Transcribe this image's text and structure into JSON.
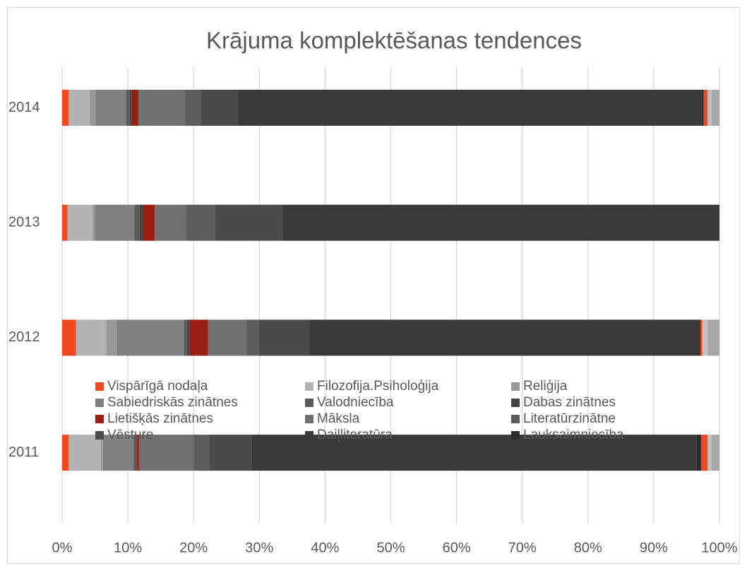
{
  "chart_data": {
    "type": "stacked_barh",
    "title": "Krājuma komplektēšanas tendences",
    "categories": [
      "2011",
      "2012",
      "2013",
      "2014"
    ],
    "series": [
      {
        "name": "Vispārīgā nodaļa",
        "color": "#f04a23",
        "values": [
          1.0,
          2.1,
          0.8,
          1.0
        ]
      },
      {
        "name": "Filozofija.Psiholoģija",
        "color": "#b3b3b3",
        "values": [
          4.9,
          4.6,
          3.8,
          3.2
        ]
      },
      {
        "name": "Reliģija",
        "color": "#999999",
        "values": [
          0.3,
          1.6,
          0.4,
          0.9
        ]
      },
      {
        "name": "Sabiedriskās zinātnes",
        "color": "#808080",
        "values": [
          4.7,
          10.2,
          6.0,
          4.6
        ]
      },
      {
        "name": "Valodniecība",
        "color": "#5a5a5a",
        "values": [
          0.4,
          0.5,
          0.8,
          0.6
        ]
      },
      {
        "name": "Dabas zinātnes",
        "color": "#454545",
        "values": [
          0.1,
          0.4,
          0.5,
          0.3
        ]
      },
      {
        "name": "Lietišķās zinātnes",
        "color": "#9b1e14",
        "values": [
          0.3,
          2.8,
          1.8,
          1.0
        ]
      },
      {
        "name": "Māksla",
        "color": "#707070",
        "values": [
          8.3,
          5.8,
          4.8,
          7.1
        ]
      },
      {
        "name": "Literatūrzinātne",
        "color": "#5c5c5c",
        "values": [
          2.4,
          1.9,
          4.4,
          2.4
        ]
      },
      {
        "name": "Vēsture",
        "color": "#4b4b4b",
        "values": [
          6.4,
          7.7,
          10.2,
          5.6
        ]
      },
      {
        "name": "Daiļliteratūra",
        "color": "#3a3a3a",
        "values": [
          67.7,
          59.3,
          66.5,
          70.6
        ]
      },
      {
        "name": "Lauksaimniecība",
        "color": "#2b2b2b",
        "values": [
          0.7,
          0.2,
          0,
          0.3
        ]
      },
      {
        "color": "#f04a23",
        "values": [
          1.0,
          0.3,
          0,
          0.6
        ]
      },
      {
        "color": "#c0c0c0",
        "values": [
          0.6,
          0.8,
          0,
          0.6
        ]
      },
      {
        "color": "#a6a6a6",
        "values": [
          1.2,
          1.8,
          0,
          1.2
        ]
      }
    ],
    "xlim": [
      0,
      100
    ],
    "xticks": [
      {
        "value": 0,
        "label": "0%"
      },
      {
        "value": 10,
        "label": "10%"
      },
      {
        "value": 20,
        "label": "20%"
      },
      {
        "value": 30,
        "label": "30%"
      },
      {
        "value": 40,
        "label": "40%"
      },
      {
        "value": 50,
        "label": "50%"
      },
      {
        "value": 60,
        "label": "60%"
      },
      {
        "value": 70,
        "label": "70%"
      },
      {
        "value": 80,
        "label": "80%"
      },
      {
        "value": 90,
        "label": "90%"
      },
      {
        "value": 100,
        "label": "100%"
      }
    ],
    "grid": true
  }
}
